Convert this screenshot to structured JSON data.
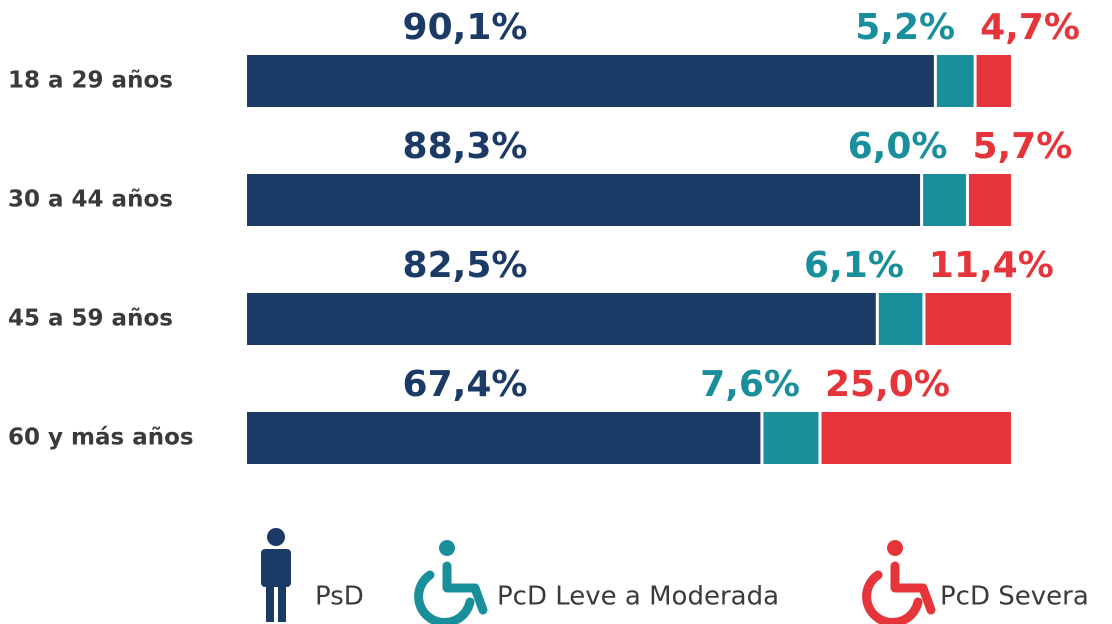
{
  "chart_data": {
    "type": "stacked_bar",
    "categories": [
      "18 a 29 años",
      "30 a 44 años",
      "45 a 59 años",
      "60 y más años"
    ],
    "xlim": [
      0,
      100
    ],
    "series": [
      {
        "name": "PsD",
        "color": "#1b3a66",
        "values": [
          90.1,
          88.3,
          82.5,
          67.4
        ],
        "value_labels": [
          "90,1%",
          "88,3%",
          "82,5%",
          "67,4%"
        ]
      },
      {
        "name": "PcD Leve a Moderada",
        "color": "#1a8f9c",
        "values": [
          5.2,
          6.0,
          6.1,
          7.6
        ],
        "value_labels": [
          "5,2%",
          "6,0%",
          "6,1%",
          "7,6%"
        ]
      },
      {
        "name": "PcD Severa",
        "color": "#e5343a",
        "values": [
          4.7,
          5.7,
          11.4,
          25.0
        ],
        "value_labels": [
          "4,7%",
          "5,7%",
          "11,4%",
          "25,0%"
        ]
      }
    ]
  }
}
